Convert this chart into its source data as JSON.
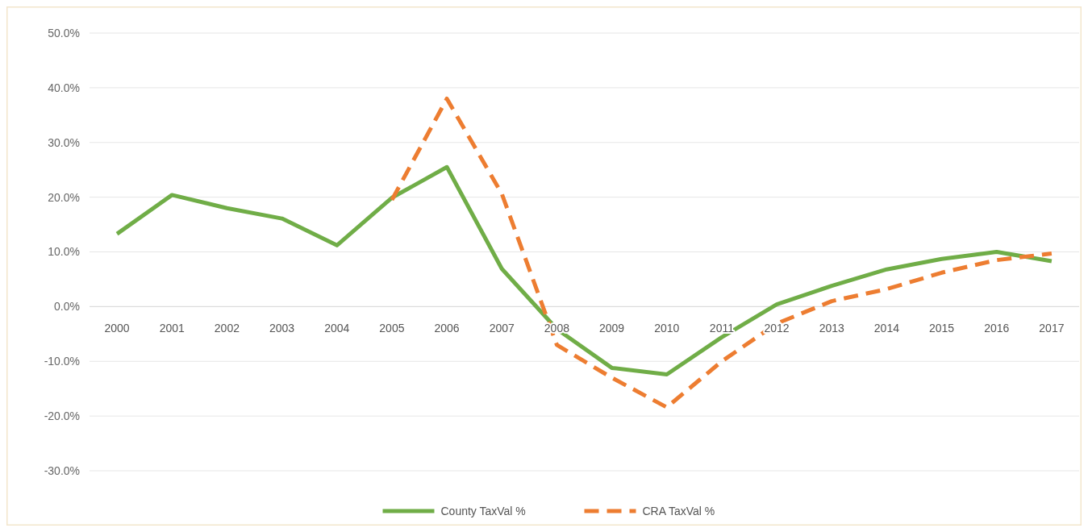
{
  "chart_data": {
    "type": "line",
    "categories": [
      "2000",
      "2001",
      "2002",
      "2003",
      "2004",
      "2005",
      "2006",
      "2007",
      "2008",
      "2009",
      "2010",
      "2011",
      "2012",
      "2013",
      "2014",
      "2015",
      "2016",
      "2017"
    ],
    "series": [
      {
        "name": "County TaxVal %",
        "color": "#70ad47",
        "line_style": "solid",
        "values": [
          13.3,
          20.4,
          18,
          16.1,
          11.2,
          19.9,
          25.5,
          6.9,
          -4.1,
          -11.2,
          -12.4,
          -5.6,
          0.4,
          3.8,
          6.8,
          8.7,
          10,
          8.3
        ]
      },
      {
        "name": "CRA TaxVal %",
        "color": "#ed7d31",
        "line_style": "dashed",
        "values": [
          null,
          null,
          null,
          null,
          null,
          19.5,
          38,
          20.6,
          -7,
          -13,
          -18.4,
          -10,
          -3.1,
          1,
          3.2,
          6.2,
          8.5,
          9.7
        ]
      }
    ],
    "ylim": [
      -30,
      50
    ],
    "yticks": [
      {
        "value": -30,
        "label": "-30.0%"
      },
      {
        "value": -20,
        "label": "-20.0%"
      },
      {
        "value": -10,
        "label": "-10.0%"
      },
      {
        "value": 0,
        "label": "0.0%"
      },
      {
        "value": 10,
        "label": "10.0%"
      },
      {
        "value": 20,
        "label": "20.0%"
      },
      {
        "value": 30,
        "label": "30.0%"
      },
      {
        "value": 40,
        "label": "40.0%"
      },
      {
        "value": 50,
        "label": "50.0%"
      }
    ],
    "grid": "y",
    "legend": "bottom"
  }
}
